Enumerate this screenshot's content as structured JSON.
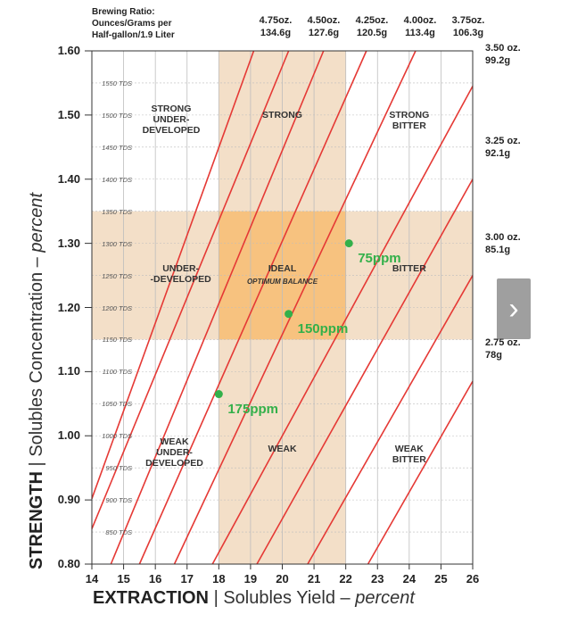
{
  "chart_data": {
    "type": "line",
    "xlabel_main": "EXTRACTION",
    "xlabel_rest": "Solubles Yield – ",
    "xlabel_unit": "percent",
    "ylabel_main": "STRENGTH",
    "ylabel_rest": "Solubles Concentration – ",
    "ylabel_unit": "percent",
    "xlim": [
      14,
      26
    ],
    "ylim": [
      0.8,
      1.6
    ],
    "x_ticks": [
      "14",
      "15",
      "16",
      "17",
      "18",
      "19",
      "20",
      "21",
      "22",
      "23",
      "24",
      "25",
      "26"
    ],
    "y_ticks": [
      "0.80",
      "0.90",
      "1.00",
      "1.10",
      "1.20",
      "1.30",
      "1.40",
      "1.50",
      "1.60"
    ],
    "tds_ticks": [
      {
        "value": 0.85,
        "label": "850 TDS"
      },
      {
        "value": 0.9,
        "label": "900 TDS"
      },
      {
        "value": 0.95,
        "label": "950 TDS"
      },
      {
        "value": 1.0,
        "label": "1000 TDS"
      },
      {
        "value": 1.05,
        "label": "1050 TDS"
      },
      {
        "value": 1.1,
        "label": "1100 TDS"
      },
      {
        "value": 1.15,
        "label": "1150 TDS"
      },
      {
        "value": 1.2,
        "label": "1200 TDS"
      },
      {
        "value": 1.25,
        "label": "1250 TDS"
      },
      {
        "value": 1.3,
        "label": "1300 TDS"
      },
      {
        "value": 1.35,
        "label": "1350 TDS"
      },
      {
        "value": 1.4,
        "label": "1400 TDS"
      },
      {
        "value": 1.45,
        "label": "1450 TDS"
      },
      {
        "value": 1.5,
        "label": "1500 TDS"
      },
      {
        "value": 1.55,
        "label": "1550 TDS"
      }
    ],
    "ideal_region": {
      "x": [
        18,
        22
      ],
      "y": [
        1.15,
        1.35
      ]
    },
    "zones": [
      {
        "line1": "STRONG",
        "line2": "UNDER-",
        "line3": "DEVELOPED",
        "sub": "",
        "x": 16.5,
        "y": 1.51
      },
      {
        "line1": "STRONG",
        "line2": "",
        "line3": "",
        "sub": "",
        "x": 20,
        "y": 1.5
      },
      {
        "line1": "STRONG",
        "line2": "BITTER",
        "line3": "",
        "sub": "",
        "x": 24,
        "y": 1.5
      },
      {
        "line1": "UNDER-",
        "line2": "-DEVELOPED",
        "line3": "",
        "sub": "",
        "x": 16.8,
        "y": 1.26
      },
      {
        "line1": "IDEAL",
        "line2": "",
        "line3": "",
        "sub": "OPTIMUM BALANCE",
        "x": 20,
        "y": 1.26
      },
      {
        "line1": "BITTER",
        "line2": "",
        "line3": "",
        "sub": "",
        "x": 24,
        "y": 1.26
      },
      {
        "line1": "WEAK",
        "line2": "UNDER-",
        "line3": "DEVELOPED",
        "sub": "",
        "x": 16.6,
        "y": 0.99
      },
      {
        "line1": "WEAK",
        "line2": "",
        "line3": "",
        "sub": "",
        "x": 20,
        "y": 0.98
      },
      {
        "line1": "WEAK",
        "line2": "BITTER",
        "line3": "",
        "sub": "",
        "x": 24,
        "y": 0.98
      }
    ],
    "ratio_header": {
      "line1": "Brewing Ratio:",
      "line2": "Ounces/Grams per",
      "line3": "Half-gallon/1.9 Liter"
    },
    "ratio_lines_top": [
      {
        "oz": "4.75oz.",
        "g": "134.6g",
        "x0": 14,
        "y0": 0.902,
        "x1": 19.1,
        "y1": 1.6
      },
      {
        "oz": "4.50oz.",
        "g": "127.6g",
        "x0": 14,
        "y0": 0.855,
        "x1": 20.2,
        "y1": 1.6
      },
      {
        "oz": "4.25oz.",
        "g": "120.5g",
        "x0": 14.6,
        "y0": 0.8,
        "x1": 21.3,
        "y1": 1.6
      },
      {
        "oz": "4.00oz.",
        "g": "113.4g",
        "x0": 15.5,
        "y0": 0.8,
        "x1": 22.65,
        "y1": 1.6
      },
      {
        "oz": "3.75oz.",
        "g": "106.3g",
        "x0": 16.6,
        "y0": 0.8,
        "x1": 24.2,
        "y1": 1.6
      }
    ],
    "ratio_lines_right": [
      {
        "oz": "3.50 oz.",
        "g": "99.2g",
        "x0": 17.8,
        "y0": 0.8,
        "x1": 26,
        "y1": 1.545
      },
      {
        "oz": "3.25 oz.",
        "g": "92.1g",
        "x0": 19.2,
        "y0": 0.8,
        "x1": 26,
        "y1": 1.4
      },
      {
        "oz": "3.00 oz.",
        "g": "85.1g",
        "x0": 20.8,
        "y0": 0.8,
        "x1": 26,
        "y1": 1.25
      },
      {
        "oz": "2.75 oz.",
        "g": "78g",
        "x0": 22.7,
        "y0": 0.8,
        "x1": 26,
        "y1": 1.085
      }
    ],
    "points": [
      {
        "label": "75ppm",
        "x": 22.1,
        "y": 1.3
      },
      {
        "label": "150ppm",
        "x": 20.2,
        "y": 1.19
      },
      {
        "label": "175ppm",
        "x": 18.0,
        "y": 1.065
      }
    ],
    "colors": {
      "band": "#f3dfc8",
      "ideal": "#f7c27f",
      "line": "#e53935",
      "grid": "#bdbdbd",
      "point": "#33b04a"
    }
  }
}
